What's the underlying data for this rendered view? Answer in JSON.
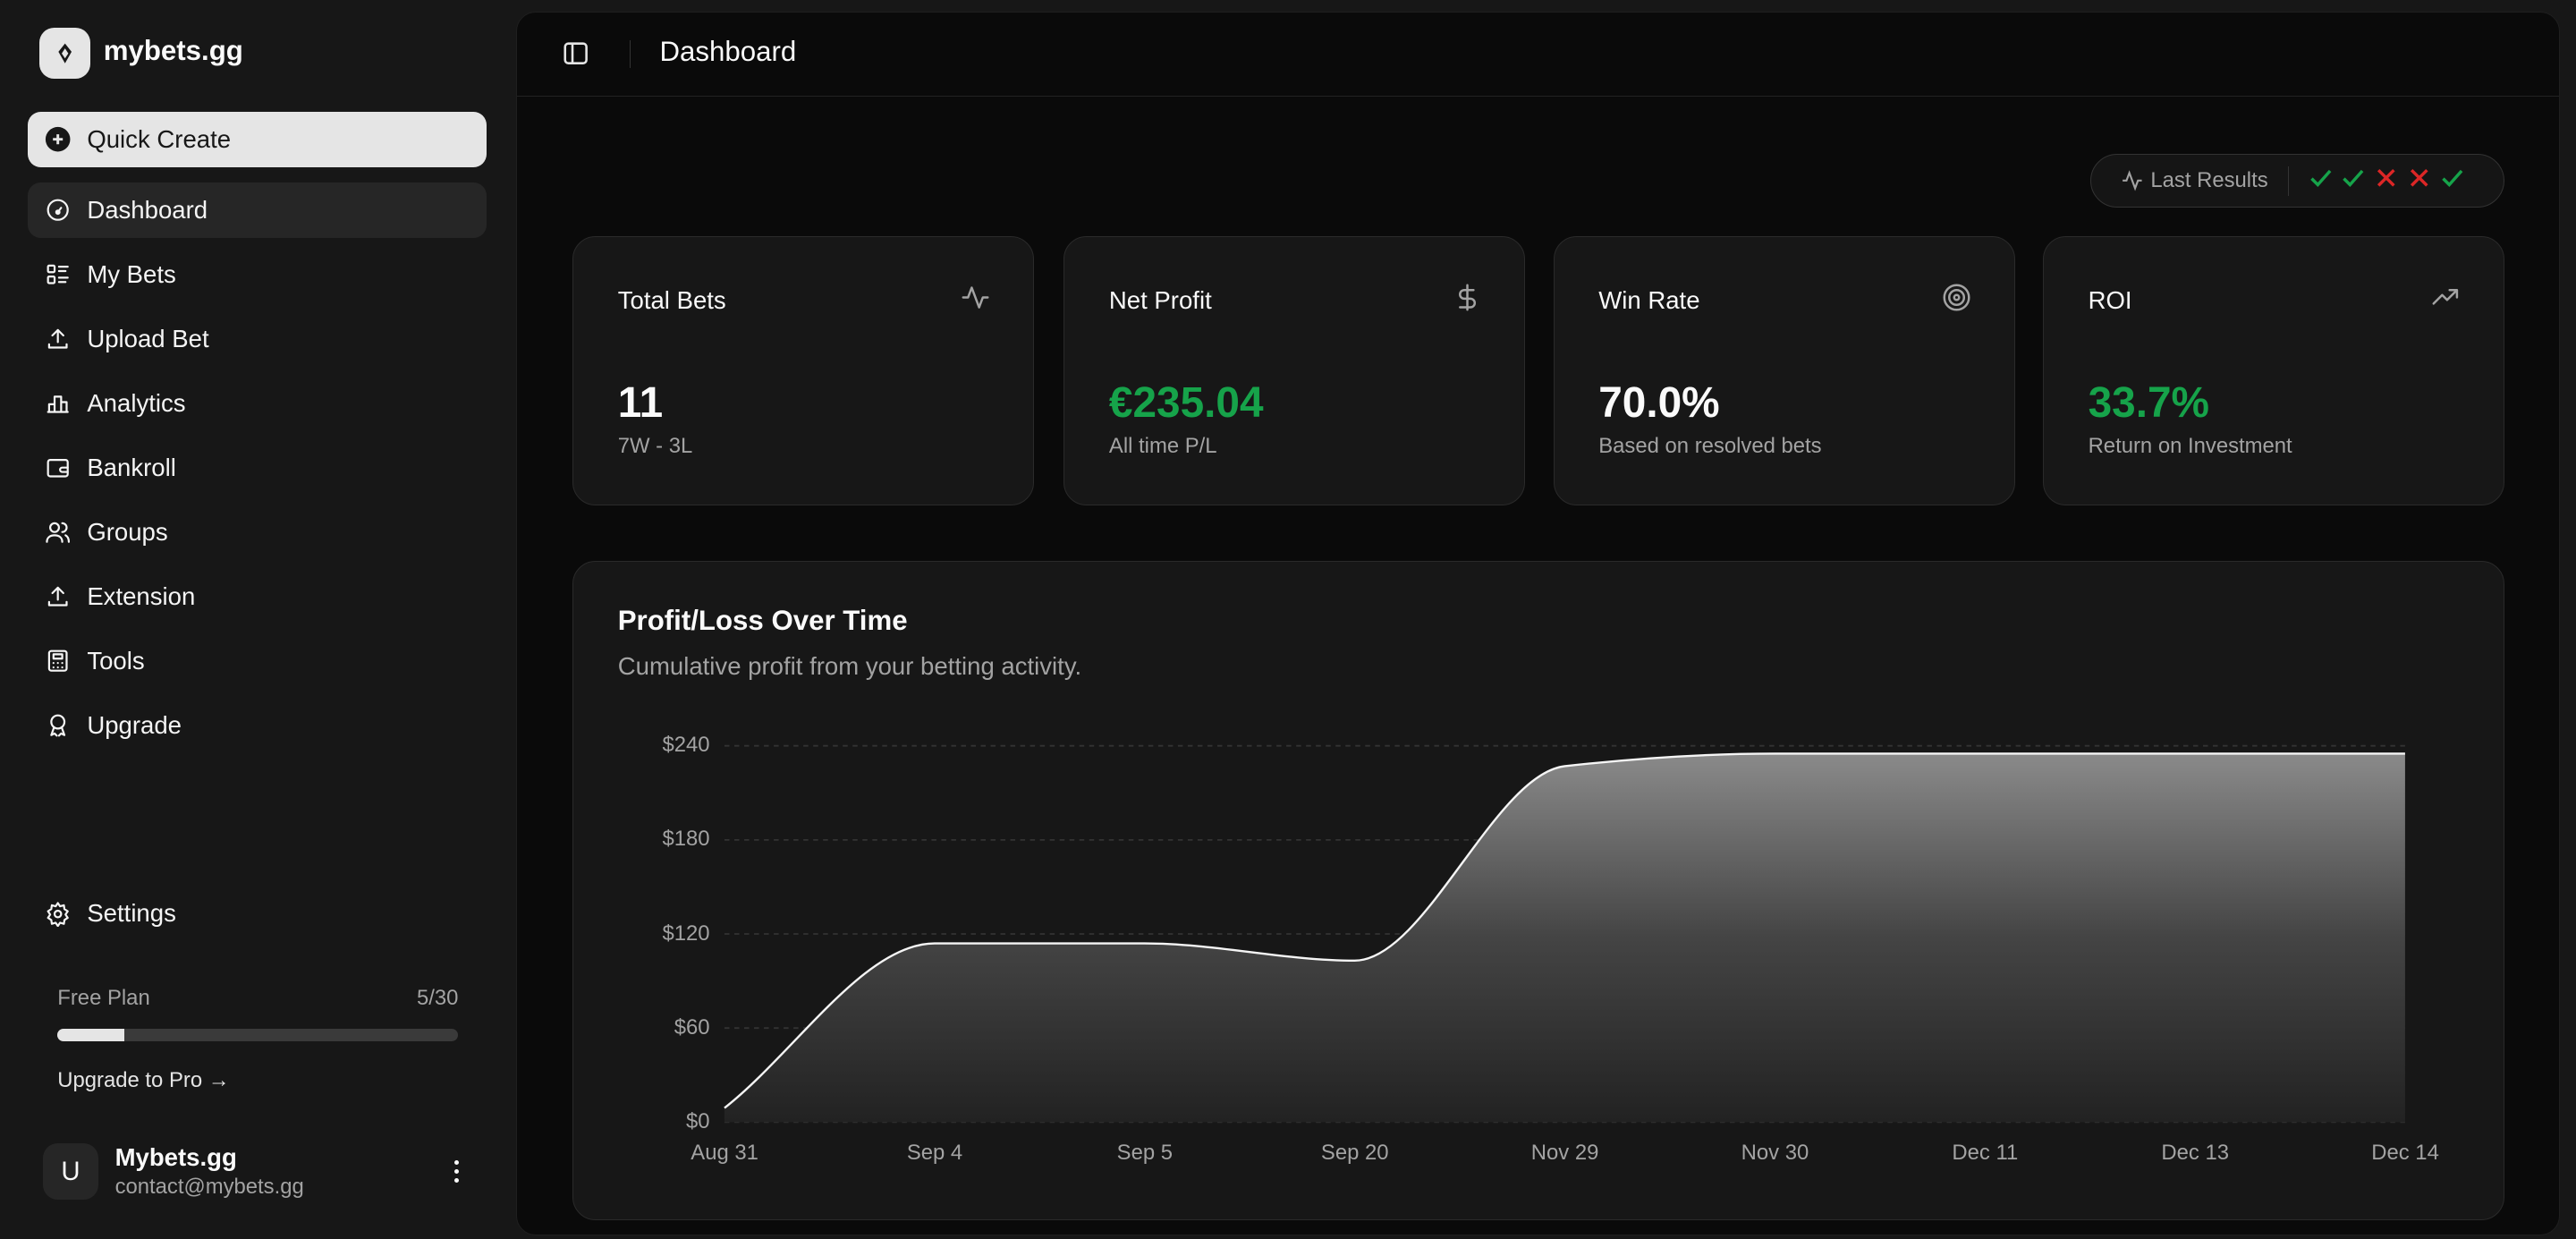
{
  "brand": {
    "name": "mybets.gg"
  },
  "sidebar": {
    "quick_create": "Quick Create",
    "items": [
      {
        "label": "Dashboard",
        "icon": "gauge-icon",
        "active": true
      },
      {
        "label": "My Bets",
        "icon": "list-icon"
      },
      {
        "label": "Upload Bet",
        "icon": "upload-icon"
      },
      {
        "label": "Analytics",
        "icon": "bar-chart-icon"
      },
      {
        "label": "Bankroll",
        "icon": "wallet-icon"
      },
      {
        "label": "Groups",
        "icon": "users-icon"
      },
      {
        "label": "Extension",
        "icon": "upload-icon"
      },
      {
        "label": "Tools",
        "icon": "calculator-icon"
      },
      {
        "label": "Upgrade",
        "icon": "award-icon"
      }
    ],
    "settings": "Settings",
    "plan": {
      "label": "Free Plan",
      "count": "5/30",
      "used": 5,
      "limit": 30,
      "upgrade": "Upgrade to Pro →"
    },
    "user": {
      "initial": "U",
      "name": "Mybets.gg",
      "email": "contact@mybets.gg"
    }
  },
  "header": {
    "title": "Dashboard"
  },
  "last_results": {
    "label": "Last Results",
    "results": [
      "win",
      "win",
      "loss",
      "loss",
      "win"
    ],
    "colors": {
      "win": "#16a34a",
      "loss": "#dc2626"
    }
  },
  "cards": [
    {
      "title": "Total Bets",
      "value": "11",
      "sub": "7W - 3L",
      "icon": "activity-icon",
      "color": "#fafafa"
    },
    {
      "title": "Net Profit",
      "value": "€235.04",
      "sub": "All time P/L",
      "icon": "dollar-icon",
      "color": "#16a34a"
    },
    {
      "title": "Win Rate",
      "value": "70.0%",
      "sub": "Based on resolved bets",
      "icon": "target-icon",
      "color": "#fafafa"
    },
    {
      "title": "ROI",
      "value": "33.7%",
      "sub": "Return on Investment",
      "icon": "trending-up-icon",
      "color": "#16a34a"
    }
  ],
  "chart_data": {
    "type": "area",
    "title": "Profit/Loss Over Time",
    "subtitle": "Cumulative profit from your betting activity.",
    "categories": [
      "Aug 31",
      "Sep 4",
      "Sep 5",
      "Sep 20",
      "Nov 29",
      "Nov 30",
      "Dec 11",
      "Dec 13",
      "Dec 14"
    ],
    "values": [
      9,
      114,
      114,
      103,
      227,
      235,
      235,
      235,
      235
    ],
    "yticks": [
      "$0",
      "$60",
      "$120",
      "$180",
      "$240"
    ],
    "ylim": [
      0,
      240
    ],
    "grid": true
  }
}
